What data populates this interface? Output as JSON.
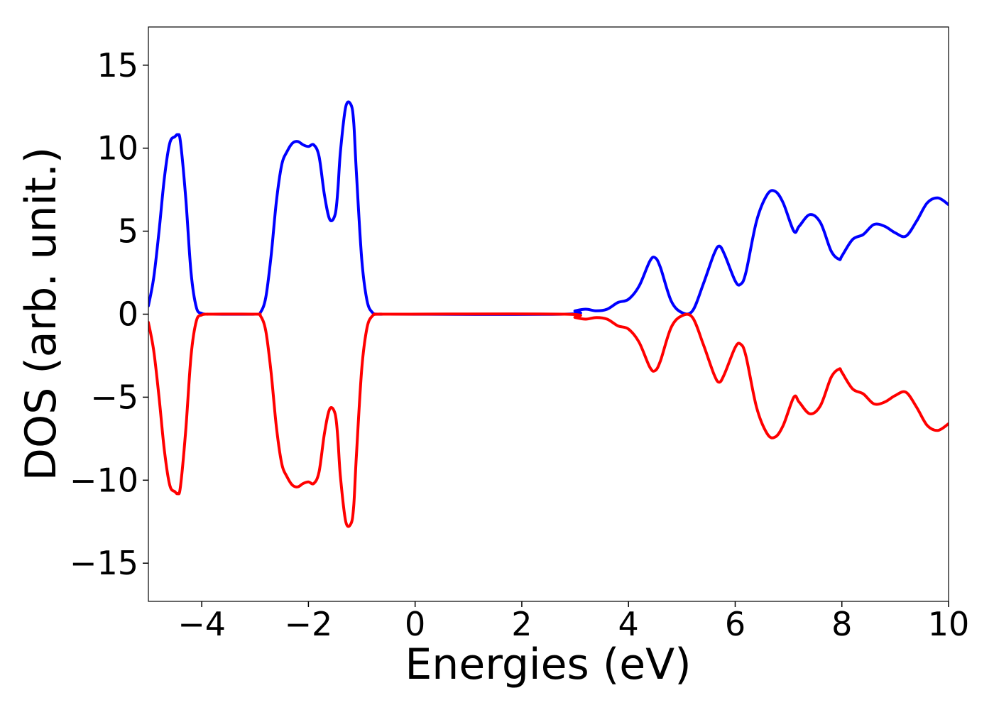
{
  "chart_data": {
    "type": "line",
    "title": "",
    "xlabel": "Energies (eV)",
    "ylabel": "DOS (arb. unit.)",
    "xlim": [
      -5,
      10
    ],
    "ylim": [
      -17.3,
      17.3
    ],
    "grid": false,
    "xticks": [
      -4,
      -2,
      0,
      2,
      4,
      6,
      8,
      10
    ],
    "xtick_labels": [
      "−4",
      "−2",
      "0",
      "2",
      "4",
      "6",
      "8",
      "10"
    ],
    "yticks": [
      15,
      10,
      5,
      0,
      -5,
      -10,
      -15
    ],
    "ytick_labels": [
      "15",
      "10",
      "5",
      "0",
      "−5",
      "−10",
      "−15"
    ],
    "series": [
      {
        "color": "#0000ff",
        "x": [
          -5.0,
          -4.9,
          -4.8,
          -4.7,
          -4.6,
          -4.5,
          -4.45,
          -4.4,
          -4.3,
          -4.2,
          -4.1,
          -4.0,
          -3.9,
          -3.8,
          -3.0,
          -2.9,
          -2.8,
          -2.7,
          -2.6,
          -2.5,
          -2.4,
          -2.3,
          -2.2,
          -2.1,
          -2.0,
          -1.9,
          -1.8,
          -1.7,
          -1.6,
          -1.5,
          -1.45,
          -1.4,
          -1.3,
          -1.2,
          -1.15,
          -1.1,
          -1.0,
          -0.9,
          -0.8,
          -0.7,
          -0.6,
          -0.5,
          2.8,
          3.0,
          3.2,
          3.4,
          3.6,
          3.8,
          4.0,
          4.2,
          4.4,
          4.5,
          4.6,
          4.8,
          5.0,
          5.2,
          5.4,
          5.6,
          5.7,
          5.8,
          6.0,
          6.1,
          6.2,
          6.4,
          6.6,
          6.75,
          6.9,
          7.1,
          7.2,
          7.4,
          7.6,
          7.8,
          7.95,
          8.0,
          8.2,
          8.4,
          8.6,
          8.8,
          9.0,
          9.2,
          9.4,
          9.6,
          9.8,
          10.0
        ],
        "y": [
          0.5,
          2.2,
          5.0,
          8.2,
          10.3,
          10.7,
          10.8,
          10.4,
          7.0,
          2.5,
          0.4,
          0.05,
          0.0,
          0.0,
          0.0,
          0.1,
          1.0,
          3.5,
          6.8,
          9.0,
          9.8,
          10.3,
          10.4,
          10.2,
          10.1,
          10.2,
          9.5,
          7.2,
          5.7,
          6.0,
          7.4,
          9.8,
          12.5,
          12.6,
          11.5,
          8.5,
          3.3,
          0.8,
          0.1,
          0.0,
          0.0,
          0.0,
          0.0,
          0.2,
          0.3,
          0.2,
          0.3,
          0.7,
          0.9,
          1.7,
          3.2,
          3.4,
          2.8,
          0.8,
          0.1,
          0.2,
          1.8,
          3.6,
          4.1,
          3.6,
          2.0,
          1.8,
          2.5,
          5.6,
          7.2,
          7.4,
          6.7,
          5.0,
          5.3,
          6.0,
          5.5,
          3.8,
          3.3,
          3.5,
          4.5,
          4.8,
          5.4,
          5.3,
          4.9,
          4.7,
          5.6,
          6.7,
          7.0,
          6.6
        ]
      },
      {
        "color": "#ff0000",
        "x": [
          -5.0,
          -4.9,
          -4.8,
          -4.7,
          -4.6,
          -4.5,
          -4.45,
          -4.4,
          -4.3,
          -4.2,
          -4.1,
          -4.0,
          -3.9,
          -3.8,
          -3.0,
          -2.9,
          -2.8,
          -2.7,
          -2.6,
          -2.5,
          -2.4,
          -2.3,
          -2.2,
          -2.1,
          -2.0,
          -1.9,
          -1.8,
          -1.7,
          -1.6,
          -1.5,
          -1.45,
          -1.4,
          -1.3,
          -1.2,
          -1.15,
          -1.1,
          -1.0,
          -0.9,
          -0.8,
          -0.7,
          -0.6,
          -0.5,
          2.8,
          3.0,
          3.2,
          3.4,
          3.6,
          3.8,
          4.0,
          4.2,
          4.4,
          4.5,
          4.6,
          4.8,
          5.0,
          5.2,
          5.4,
          5.6,
          5.7,
          5.8,
          6.0,
          6.1,
          6.2,
          6.4,
          6.6,
          6.75,
          6.9,
          7.1,
          7.2,
          7.4,
          7.6,
          7.8,
          7.95,
          8.0,
          8.2,
          8.4,
          8.6,
          8.8,
          9.0,
          9.2,
          9.4,
          9.6,
          9.8,
          10.0
        ],
        "y": [
          -0.5,
          -2.2,
          -5.0,
          -8.2,
          -10.3,
          -10.7,
          -10.8,
          -10.4,
          -7.0,
          -2.5,
          -0.4,
          -0.05,
          0.0,
          0.0,
          0.0,
          -0.1,
          -1.0,
          -3.5,
          -6.8,
          -9.0,
          -9.8,
          -10.3,
          -10.4,
          -10.2,
          -10.1,
          -10.2,
          -9.5,
          -7.2,
          -5.7,
          -6.0,
          -7.4,
          -9.8,
          -12.5,
          -12.6,
          -11.5,
          -8.5,
          -3.3,
          -0.8,
          -0.1,
          0.0,
          0.0,
          0.0,
          0.0,
          -0.2,
          -0.3,
          -0.2,
          -0.3,
          -0.7,
          -0.9,
          -1.7,
          -3.2,
          -3.4,
          -2.8,
          -0.8,
          -0.1,
          -0.2,
          -1.8,
          -3.6,
          -4.1,
          -3.6,
          -2.0,
          -1.8,
          -2.5,
          -5.6,
          -7.2,
          -7.4,
          -6.7,
          -5.0,
          -5.3,
          -6.0,
          -5.5,
          -3.8,
          -3.3,
          -3.5,
          -4.5,
          -4.8,
          -5.4,
          -5.3,
          -4.9,
          -4.7,
          -5.6,
          -6.7,
          -7.0,
          -6.6
        ]
      }
    ]
  }
}
